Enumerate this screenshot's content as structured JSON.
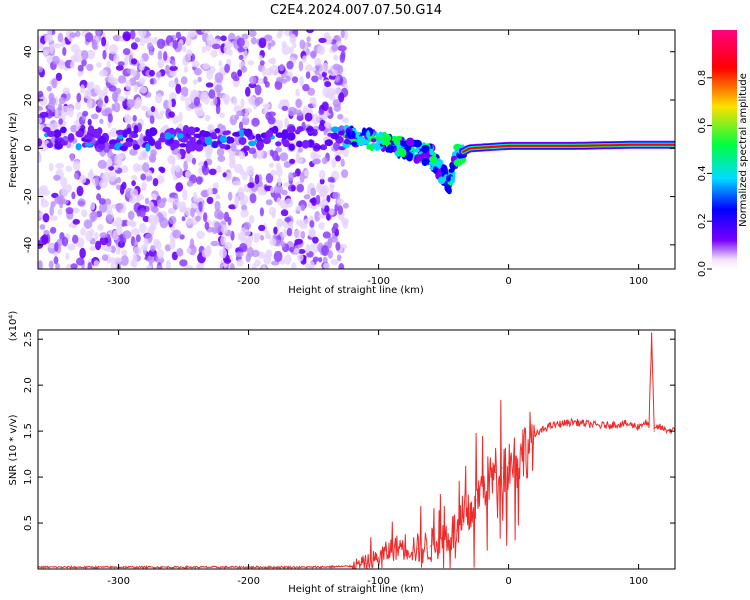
{
  "title": "C2E4.2024.007.07.50.G14",
  "chart_data": [
    {
      "type": "heatmap",
      "xlabel": "Height of straight line (km)",
      "ylabel": "Frequency (Hz)",
      "xlim": [
        -362,
        128
      ],
      "ylim": [
        -50,
        49
      ],
      "x_ticks": [
        -300,
        -200,
        -100,
        0,
        100
      ],
      "y_ticks": [
        -40,
        -20,
        0,
        20,
        40
      ],
      "colorbar": {
        "label": "Normalized spectral amplitude",
        "range": [
          0.0,
          1.0
        ],
        "ticks": [
          0.0,
          0.2,
          0.4,
          0.6,
          0.8
        ],
        "colors": [
          "#ffffff",
          "#7a00ff",
          "#0000ff",
          "#00dcff",
          "#00ff40",
          "#ffe000",
          "#ff0000",
          "#ff0080"
        ]
      },
      "features": [
        {
          "name": "noise region",
          "x_range": [
            -362,
            -125
          ],
          "freq_range": [
            -50,
            49
          ],
          "amplitude_approx": 0.1
        },
        {
          "name": "signal band",
          "x_range": [
            -362,
            -125
          ],
          "freq_center": 4,
          "amplitude_approx": 0.2
        },
        {
          "name": "signal track",
          "points": [
            [
              -125,
              5
            ],
            [
              -100,
              3
            ],
            [
              -80,
              0
            ],
            [
              -60,
              -3
            ],
            [
              -45,
              -15
            ],
            [
              -40,
              -3
            ],
            [
              -30,
              0
            ],
            [
              0,
              1
            ],
            [
              50,
              1
            ],
            [
              100,
              1.5
            ],
            [
              128,
              1.5
            ]
          ]
        }
      ]
    },
    {
      "type": "line",
      "xlabel": "Height of straight line (km)",
      "ylabel": "SNR (10 * v/v)",
      "y_multiplier": "(x10⁴)",
      "xlim": [
        -362,
        128
      ],
      "ylim": [
        0,
        2.6
      ],
      "x_ticks": [
        -300,
        -200,
        -100,
        0,
        100
      ],
      "y_ticks": [
        0.5,
        1.0,
        1.5,
        2.0,
        2.5
      ],
      "color": "#ee2a2a",
      "x": [
        -362,
        -300,
        -200,
        -150,
        -120,
        -110,
        -100,
        -90,
        -80,
        -70,
        -60,
        -50,
        -40,
        -35,
        -30,
        -25,
        -20,
        -15,
        -10,
        -5,
        0,
        5,
        10,
        15,
        20,
        25,
        30,
        40,
        50,
        60,
        70,
        80,
        90,
        100,
        105,
        108,
        110,
        112,
        115,
        120,
        128
      ],
      "values": [
        0.02,
        0.02,
        0.02,
        0.02,
        0.03,
        0.06,
        0.12,
        0.22,
        0.25,
        0.22,
        0.25,
        0.35,
        0.42,
        0.48,
        0.6,
        0.75,
        0.9,
        0.97,
        1.05,
        1.1,
        1.15,
        1.2,
        1.25,
        1.35,
        1.45,
        1.5,
        1.55,
        1.58,
        1.6,
        1.58,
        1.56,
        1.57,
        1.58,
        1.55,
        1.6,
        1.55,
        2.55,
        1.5,
        1.55,
        1.52,
        1.5
      ]
    }
  ]
}
